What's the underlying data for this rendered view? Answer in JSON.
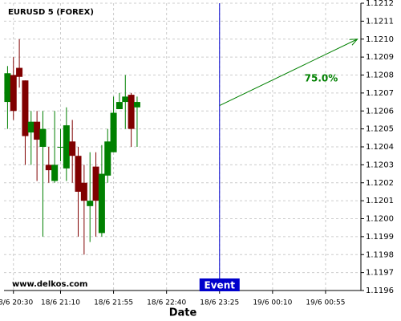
{
  "chart_data": {
    "type": "candlestick",
    "title": "EURUSD 5 (FOREX)",
    "xlabel": "Date",
    "watermark": "www.delkos.com",
    "x": [
      -1,
      0,
      1,
      2,
      3,
      4,
      5,
      6,
      7,
      8,
      9,
      10,
      11,
      12,
      13,
      14,
      15,
      16,
      17,
      18,
      19,
      20,
      21
    ],
    "open": [
      1.12065,
      1.1208,
      1.12084,
      1.12077,
      1.12048,
      1.12054,
      1.1204,
      1.1203,
      1.12021,
      1.1204,
      1.12028,
      1.12043,
      1.12035,
      1.1202,
      1.12007,
      1.12029,
      1.11992,
      1.12024,
      1.12037,
      1.12061,
      1.12065,
      1.12069,
      1.12062
    ],
    "close": [
      1.12081,
      1.1206,
      1.12079,
      1.12046,
      1.12054,
      1.12044,
      1.1205,
      1.12027,
      1.1203,
      1.1204,
      1.12052,
      1.12035,
      1.12015,
      1.1201,
      1.1201,
      1.1201,
      1.12025,
      1.12043,
      1.12059,
      1.12065,
      1.12068,
      1.1205,
      1.12065
    ],
    "high": [
      1.12085,
      1.1209,
      1.121,
      1.12077,
      1.1206,
      1.1206,
      1.1206,
      1.1204,
      1.1206,
      1.1205,
      1.12062,
      1.12055,
      1.1204,
      1.1203,
      1.12037,
      1.12037,
      1.12041,
      1.1205,
      1.12068,
      1.1207,
      1.1208,
      1.1207,
      1.12068
    ],
    "low": [
      1.1205,
      1.12055,
      1.12073,
      1.1203,
      1.1203,
      1.12021,
      1.1199,
      1.1202,
      1.1202,
      1.12032,
      1.12021,
      1.1202,
      1.1199,
      1.1198,
      1.11987,
      1.1199,
      1.1199,
      1.1202,
      1.12037,
      1.12061,
      1.1205,
      1.1204,
      1.1204
    ],
    "up_color": "#008000",
    "down_color": "#800000",
    "xlim": [
      -1.6,
      59
    ],
    "ylim": [
      1.1196,
      1.1212
    ],
    "xticks": [
      {
        "value": 0,
        "label": "18/6 20:30"
      },
      {
        "value": 8,
        "label": "18/6 21:10"
      },
      {
        "value": 17,
        "label": "18/6 21:55"
      },
      {
        "value": 26,
        "label": "18/6 22:40"
      },
      {
        "value": 35,
        "label": "18/6 23:25"
      },
      {
        "value": 44,
        "label": "19/6 00:10"
      },
      {
        "value": 53,
        "label": "19/6 00:55"
      }
    ],
    "yticks": [
      1.1196,
      1.1197,
      1.1198,
      1.1199,
      {
        "value": 1.12,
        "label": "1.1200"
      },
      1.1201,
      1.1202,
      1.1203,
      1.1204,
      1.1205,
      1.1206,
      1.1207,
      1.1208,
      1.1209,
      {
        "value": 1.121,
        "label": "1.1210"
      },
      1.1211,
      1.1212
    ],
    "grid": true,
    "event": {
      "x": 35,
      "label": "Event",
      "color": "#0000cc"
    },
    "arrow": {
      "x": [
        35,
        58.4
      ],
      "y": [
        1.12063,
        1.121
      ],
      "label": "75.0%",
      "color": "#008000"
    }
  }
}
